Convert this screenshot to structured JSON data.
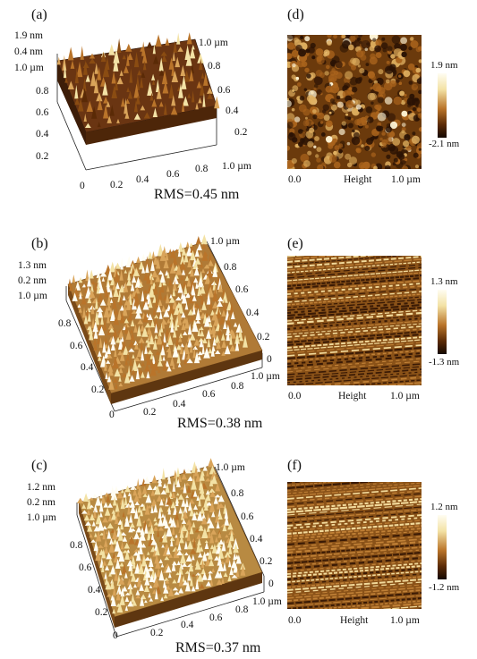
{
  "colors": {
    "afm_dark": "#140800",
    "afm_mid": "#9b5a16",
    "afm_light": "#f3e2a5",
    "afm_highlight": "#fffdf2"
  },
  "panels": [
    {
      "id": "a",
      "label": "(a)",
      "z_max": "1.9 nm",
      "z_min": "0.4 nm",
      "y_axis_top": "1.0 µm",
      "y_ticks": [
        "0.8",
        "0.6",
        "0.4",
        "0.2"
      ],
      "right_axis_top": "1.0 µm",
      "right_ticks": [
        "0.8",
        "0.6",
        "0.4",
        "0.2"
      ],
      "origin": "0",
      "x_ticks": [
        "0.2",
        "0.4",
        "0.6",
        "0.8"
      ],
      "x_axis_end": "1.0 µm",
      "rms": "RMS=0.45 nm"
    },
    {
      "id": "b",
      "label": "(b)",
      "z_max": "1.3 nm",
      "z_min": "0.2 nm",
      "y_axis_top": "1.0 µm",
      "y_ticks": [
        "0.8",
        "0.6",
        "0.4",
        "0.2"
      ],
      "right_axis_top": "1.0 µm",
      "right_ticks": [
        "0.8",
        "0.6",
        "0.4",
        "0.2",
        "0"
      ],
      "origin": "0",
      "x_ticks": [
        "0.2",
        "0.4",
        "0.6",
        "0.8"
      ],
      "x_axis_end": "1.0 µm",
      "rms": "RMS=0.38 nm"
    },
    {
      "id": "c",
      "label": "(c)",
      "z_max": "1.2 nm",
      "z_min": "0.2 nm",
      "y_axis_top": "1.0 µm",
      "y_ticks": [
        "0.8",
        "0.6",
        "0.4",
        "0.2"
      ],
      "right_axis_top": "1.0 µm",
      "right_ticks": [
        "0.8",
        "0.6",
        "0.4",
        "0.2",
        "0"
      ],
      "origin": "0",
      "x_ticks": [
        "0.2",
        "0.4",
        "0.6",
        "0.8"
      ],
      "x_axis_end": "1.0 µm",
      "rms": "RMS=0.37 nm"
    }
  ],
  "maps": [
    {
      "id": "d",
      "label": "(d)",
      "x_start": "0.0",
      "x_title": "Height",
      "x_end": "1.0 µm",
      "cbar_max": "1.9 nm",
      "cbar_min": "-2.1 nm",
      "texture": "grainy"
    },
    {
      "id": "e",
      "label": "(e)",
      "x_start": "0.0",
      "x_title": "Height",
      "x_end": "1.0 µm",
      "cbar_max": "1.3 nm",
      "cbar_min": "-1.3 nm",
      "texture": "striped"
    },
    {
      "id": "f",
      "label": "(f)",
      "x_start": "0.0",
      "x_title": "Height",
      "x_end": "1.0 µm",
      "cbar_max": "1.2 nm",
      "cbar_min": "-1.2 nm",
      "texture": "striped"
    }
  ]
}
